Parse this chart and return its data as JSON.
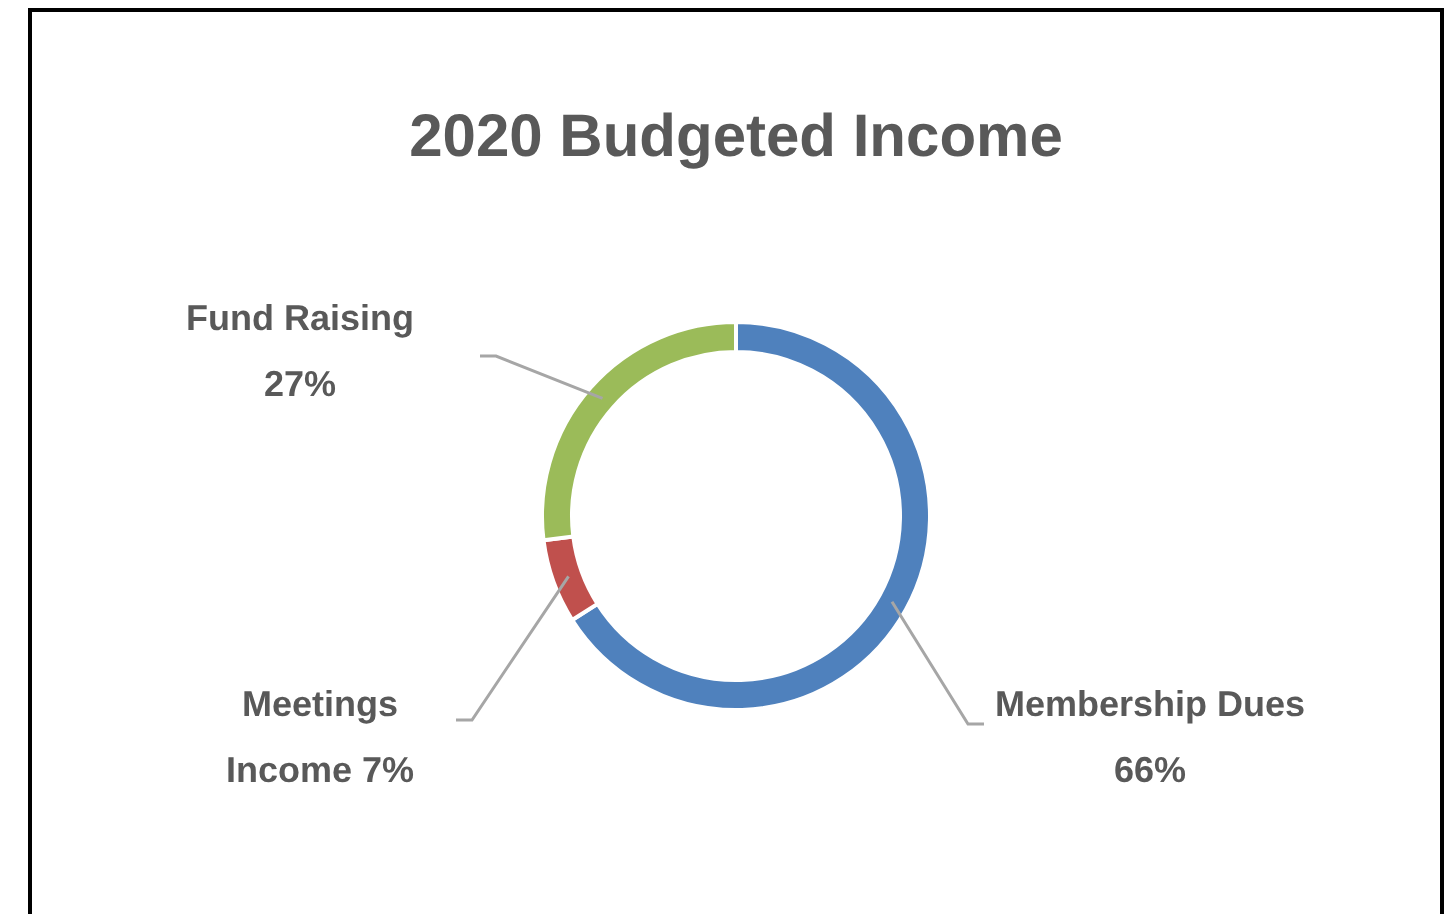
{
  "chart_data": {
    "type": "donut",
    "title": "2020 Budgeted Income",
    "categories": [
      "Membership Dues",
      "Meetings Income",
      "Fund Raising"
    ],
    "values": [
      66,
      7,
      27
    ],
    "colors": [
      "#4f81bd",
      "#c0504d",
      "#9bbb59"
    ],
    "value_labels": [
      "66%",
      "7%",
      "27%"
    ]
  }
}
